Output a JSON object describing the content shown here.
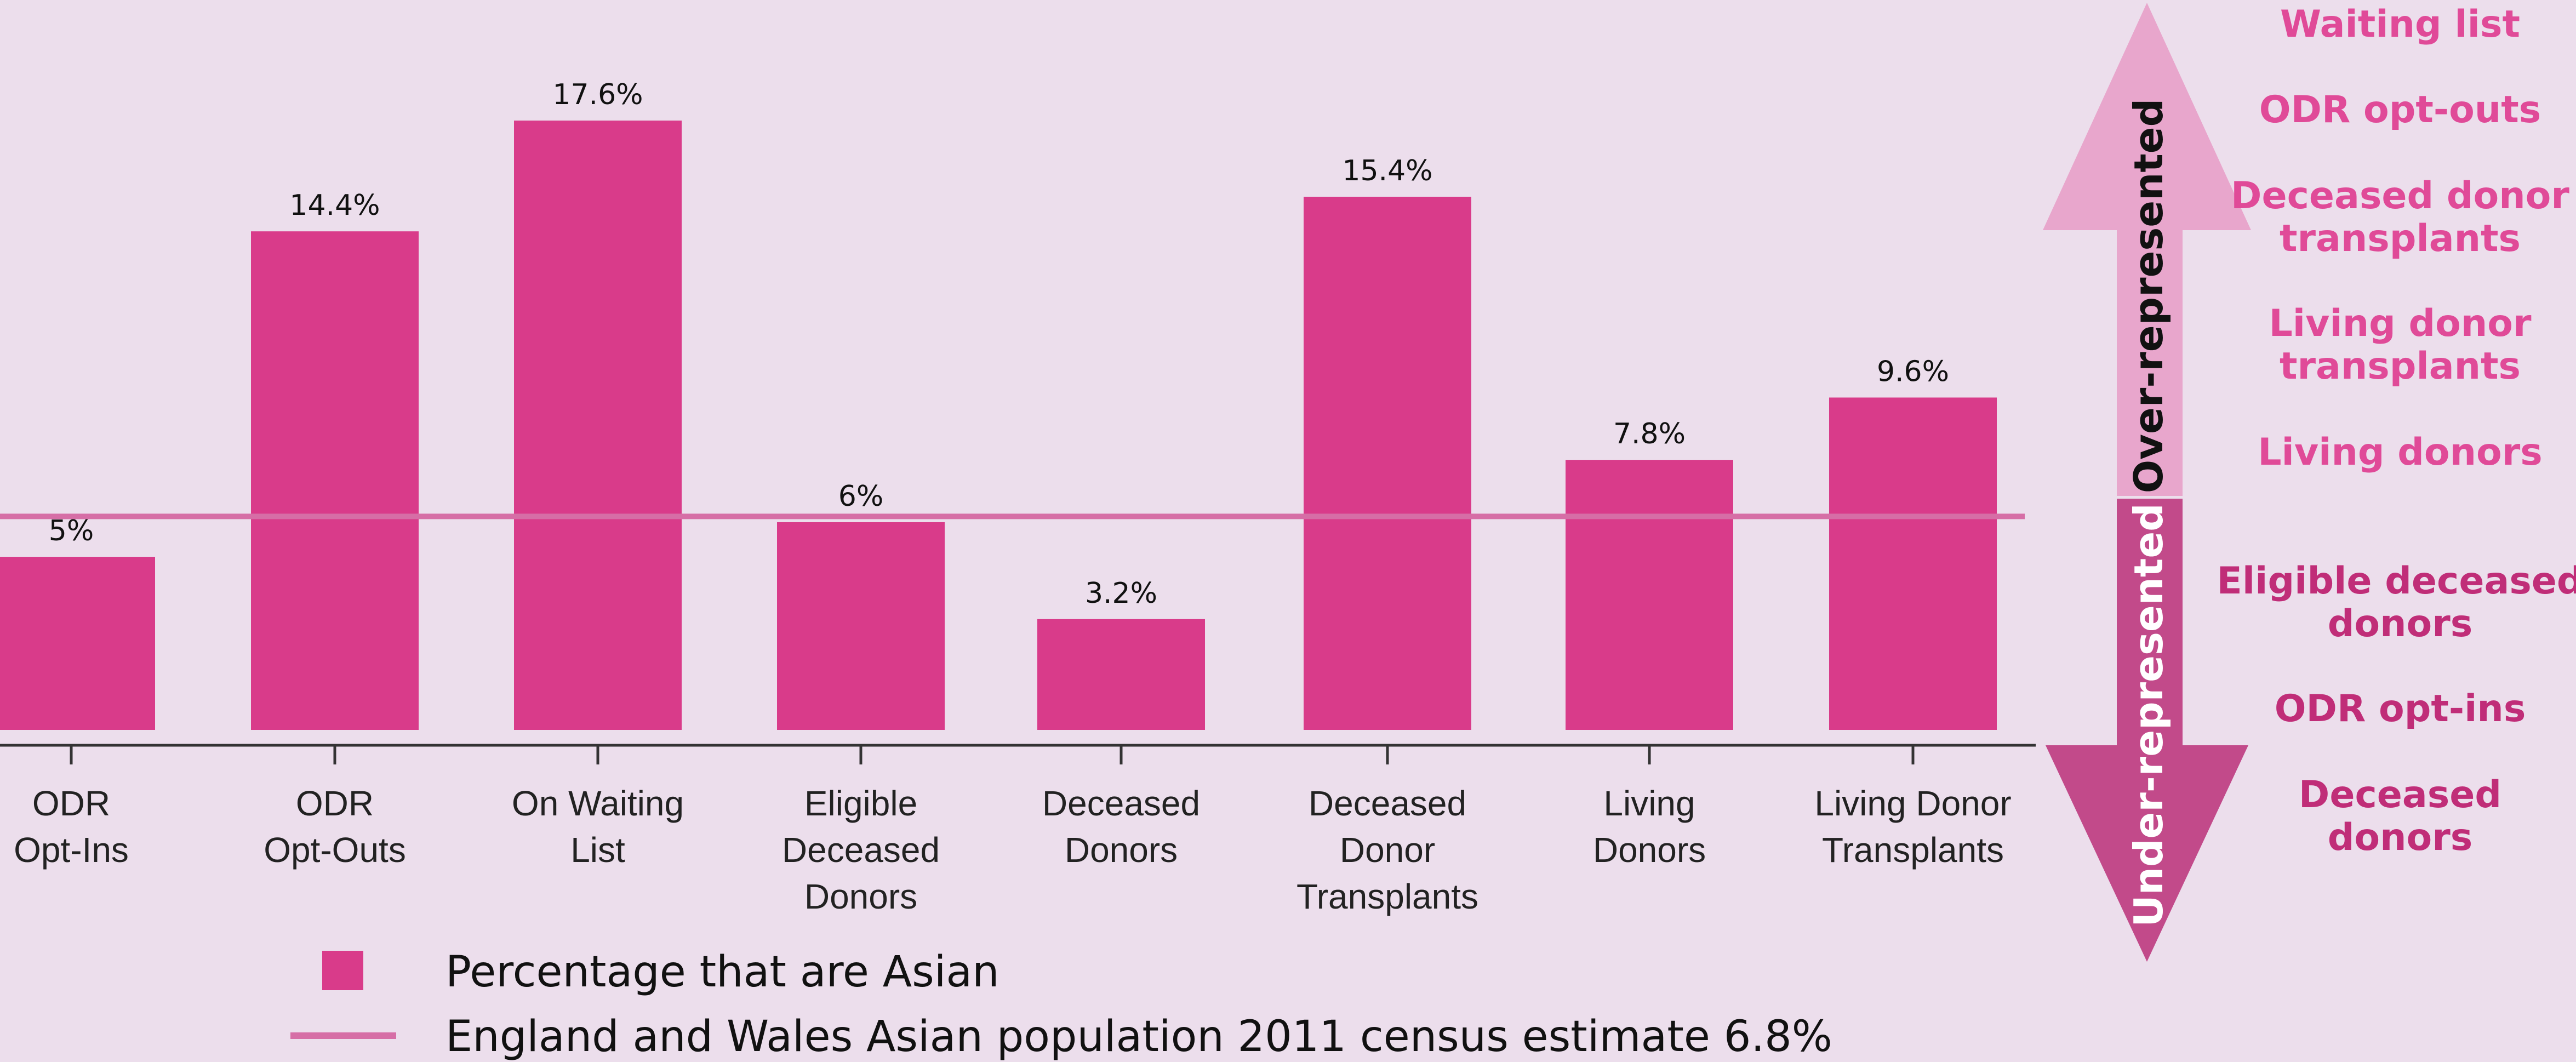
{
  "chart_data": {
    "type": "bar",
    "categories": [
      [
        "ODR",
        "Opt-Ins"
      ],
      [
        "ODR",
        "Opt-Outs"
      ],
      [
        "On Waiting",
        "List"
      ],
      [
        "Eligible",
        "Deceased",
        "Donors"
      ],
      [
        "Deceased",
        "Donors"
      ],
      [
        "Deceased",
        "Donor",
        "Transplants"
      ],
      [
        "Living",
        "Donors"
      ],
      [
        "Living Donor",
        "Transplants"
      ]
    ],
    "values": [
      5.0,
      14.4,
      17.6,
      6.0,
      3.2,
      15.4,
      7.8,
      9.6
    ],
    "value_labels": [
      "5%",
      "14.4%",
      "17.6%",
      "6%",
      "3.2%",
      "15.4%",
      "7.8%",
      "9.6%"
    ],
    "reference_line": {
      "value": 6.8
    },
    "ylim": [
      0,
      18.4
    ],
    "grid": false,
    "legend": {
      "position": "bottom",
      "entries": [
        {
          "label": "Percentage that are Asian",
          "type": "bar"
        },
        {
          "label": "England and Wales Asian population 2011 census estimate 6.8%",
          "type": "line"
        }
      ]
    },
    "colors": {
      "bar": "#d93b8a",
      "reference_line": "#d66ea6",
      "background": "#ecdeec"
    }
  },
  "side_panel": {
    "over_label": "Over-represented",
    "under_label": "Under-represented",
    "over_items": [
      [
        "Waiting list"
      ],
      [
        "ODR opt-outs"
      ],
      [
        "Deceased donor",
        "transplants"
      ],
      [
        "Living donor",
        "transplants"
      ],
      [
        "Living donors"
      ]
    ],
    "under_items": [
      [
        "Eligible deceased",
        "donors"
      ],
      [
        "ODR opt-ins"
      ],
      [
        "Deceased",
        "donors"
      ]
    ],
    "colors": {
      "over_arrow": "#e8a6cc",
      "under_arrow": "#c24a8a",
      "over_text": "#e04a98",
      "under_text": "#c02d78",
      "over_arrow_text": "#111111",
      "under_arrow_text": "#ffffff"
    }
  }
}
